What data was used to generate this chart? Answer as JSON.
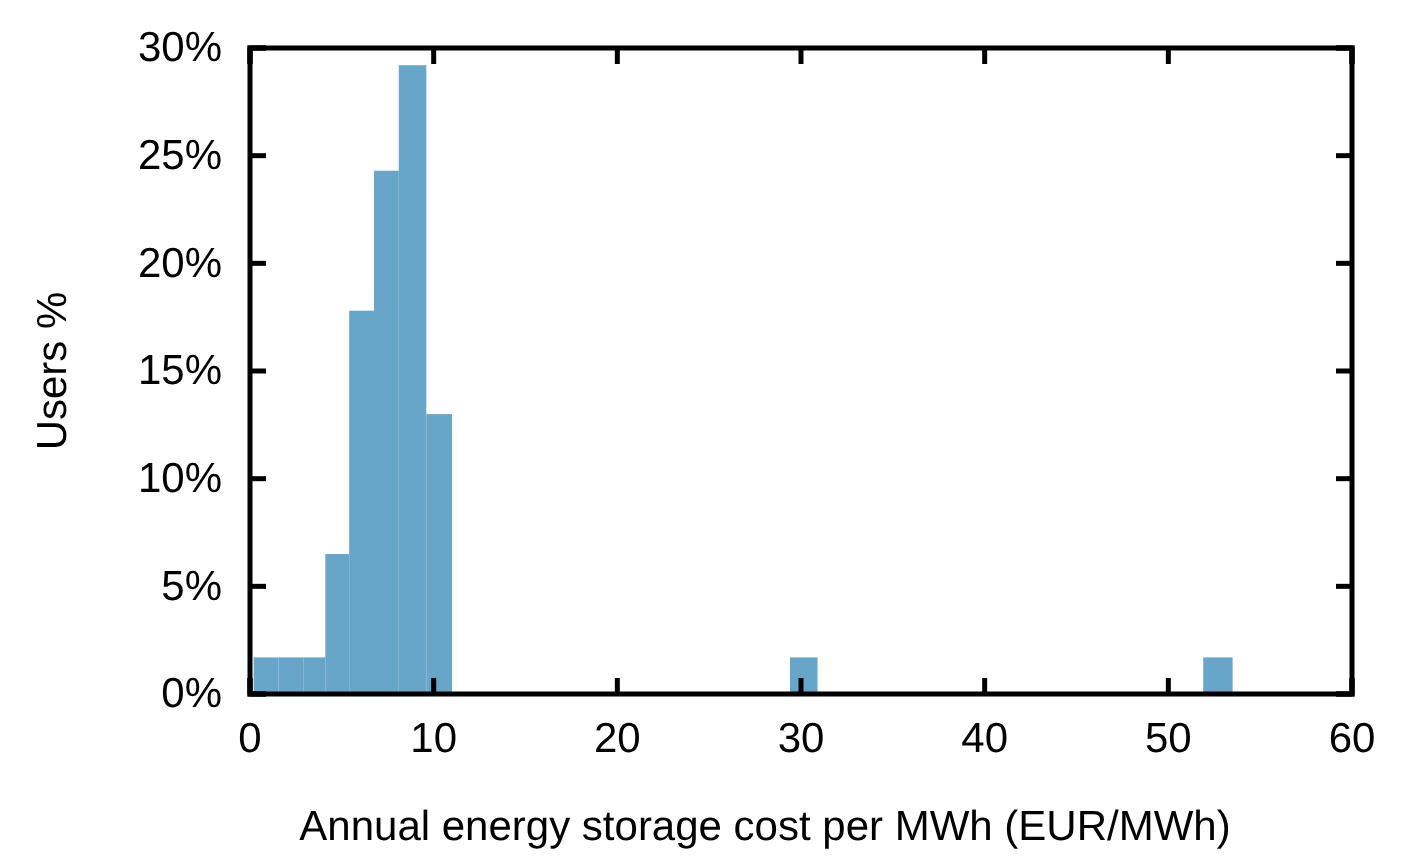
{
  "chart_data": {
    "type": "histogram",
    "xlabel": "Annual energy storage cost per MWh (EUR/MWh)",
    "ylabel": "Users %",
    "bins": [
      0.2,
      1.55,
      2.9,
      4.1,
      5.4,
      6.75,
      8.1,
      9.6,
      11.0,
      29.4,
      30.9,
      51.9,
      53.5
    ],
    "values": [
      1.7,
      1.7,
      1.7,
      6.5,
      17.8,
      24.3,
      29.2,
      13.0,
      0,
      1.7,
      0,
      1.7
    ],
    "color": "#67a5c9",
    "xlim": [
      0,
      60
    ],
    "xticks": [
      0,
      10,
      20,
      30,
      40,
      50,
      60
    ],
    "ylim": [
      0,
      30
    ],
    "yticks": [
      {
        "value": 0,
        "label": "0%"
      },
      {
        "value": 5,
        "label": "5%"
      },
      {
        "value": 10,
        "label": "10%"
      },
      {
        "value": 15,
        "label": "15%"
      },
      {
        "value": 20,
        "label": "20%"
      },
      {
        "value": 25,
        "label": "25%"
      },
      {
        "value": 30,
        "label": "30%"
      }
    ],
    "grid": false
  }
}
